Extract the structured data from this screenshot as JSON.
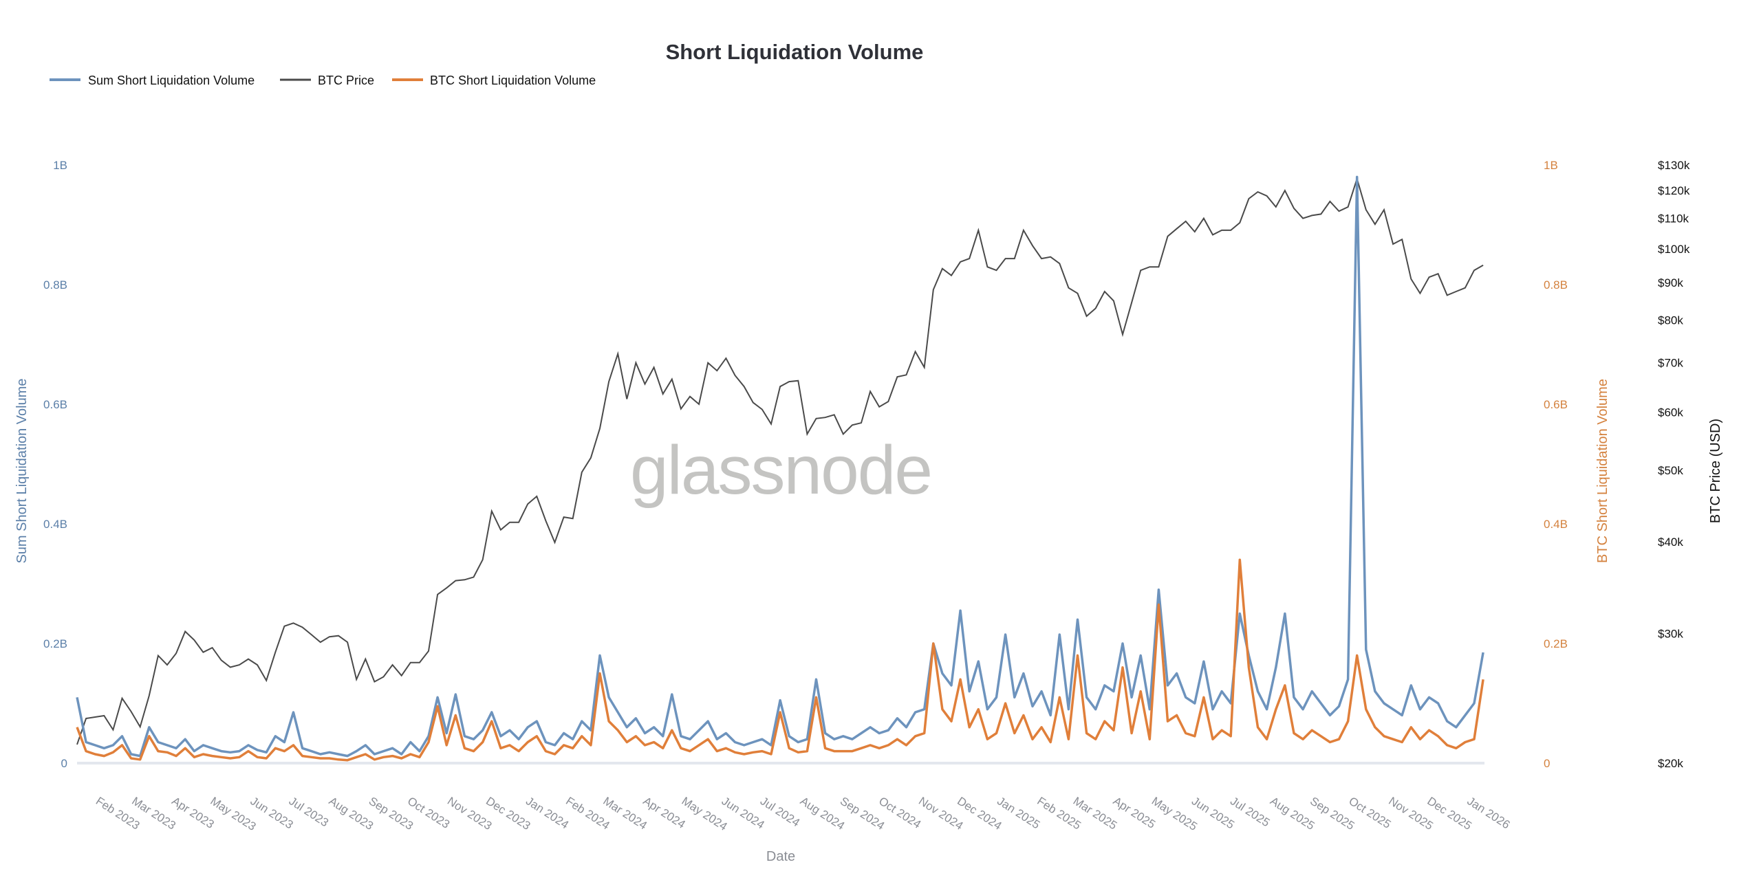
{
  "chart_data": {
    "type": "line",
    "title": "Short Liquidation Volume",
    "xlabel": "Date",
    "legend_position": "top-left",
    "grid": false,
    "watermark": "glassnode",
    "colors": {
      "sum": "#6d93bd",
      "price": "#4a4a4a",
      "btc": "#e07f3a",
      "left_axis": "#5b7fa8",
      "right_axis": "#d4823f"
    },
    "legend": [
      "Sum Short Liquidation Volume",
      "BTC Price",
      "BTC Short Liquidation Volume"
    ],
    "y_left": {
      "label": "Sum Short Liquidation Volume",
      "range": [
        0,
        1000000000
      ],
      "ticks": [
        "0",
        "0.2B",
        "0.4B",
        "0.6B",
        "0.8B",
        "1B"
      ]
    },
    "y_right": {
      "label": "BTC Short Liquidation Volume",
      "range": [
        0,
        1000000000
      ],
      "ticks": [
        "0",
        "0.2B",
        "0.4B",
        "0.6B",
        "0.8B",
        "1B"
      ]
    },
    "y_price": {
      "label": "BTC Price (USD)",
      "scale": "log",
      "range": [
        20000,
        130000
      ],
      "ticks": [
        {
          "v": 20000,
          "t": "$20k"
        },
        {
          "v": 30000,
          "t": "$30k"
        },
        {
          "v": 40000,
          "t": "$40k"
        },
        {
          "v": 50000,
          "t": "$50k"
        },
        {
          "v": 60000,
          "t": "$60k"
        },
        {
          "v": 70000,
          "t": "$70k"
        },
        {
          "v": 80000,
          "t": "$80k"
        },
        {
          "v": 90000,
          "t": "$90k"
        },
        {
          "v": 100000,
          "t": "$100k"
        },
        {
          "v": 110000,
          "t": "$110k"
        },
        {
          "v": 120000,
          "t": "$120k"
        },
        {
          "v": 130000,
          "t": "$130k"
        }
      ]
    },
    "x_range": [
      "2023-01-17",
      "2026-01-14"
    ],
    "x_ticks": [
      {
        "d": "2023-02-01",
        "t": "Feb 2023"
      },
      {
        "d": "2023-03-01",
        "t": "Mar 2023"
      },
      {
        "d": "2023-04-01",
        "t": "Apr 2023"
      },
      {
        "d": "2023-05-01",
        "t": "May 2023"
      },
      {
        "d": "2023-06-01",
        "t": "Jun 2023"
      },
      {
        "d": "2023-07-01",
        "t": "Jul 2023"
      },
      {
        "d": "2023-08-01",
        "t": "Aug 2023"
      },
      {
        "d": "2023-09-01",
        "t": "Sep 2023"
      },
      {
        "d": "2023-10-01",
        "t": "Oct 2023"
      },
      {
        "d": "2023-11-01",
        "t": "Nov 2023"
      },
      {
        "d": "2023-12-01",
        "t": "Dec 2023"
      },
      {
        "d": "2024-01-01",
        "t": "Jan 2024"
      },
      {
        "d": "2024-02-01",
        "t": "Feb 2024"
      },
      {
        "d": "2024-03-01",
        "t": "Mar 2024"
      },
      {
        "d": "2024-04-01",
        "t": "Apr 2024"
      },
      {
        "d": "2024-05-01",
        "t": "May 2024"
      },
      {
        "d": "2024-06-01",
        "t": "Jun 2024"
      },
      {
        "d": "2024-07-01",
        "t": "Jul 2024"
      },
      {
        "d": "2024-08-01",
        "t": "Aug 2024"
      },
      {
        "d": "2024-09-01",
        "t": "Sep 2024"
      },
      {
        "d": "2024-10-01",
        "t": "Oct 2024"
      },
      {
        "d": "2024-11-01",
        "t": "Nov 2024"
      },
      {
        "d": "2024-12-01",
        "t": "Dec 2024"
      },
      {
        "d": "2025-01-01",
        "t": "Jan 2025"
      },
      {
        "d": "2025-02-01",
        "t": "Feb 2025"
      },
      {
        "d": "2025-03-01",
        "t": "Mar 2025"
      },
      {
        "d": "2025-04-01",
        "t": "Apr 2025"
      },
      {
        "d": "2025-05-01",
        "t": "May 2025"
      },
      {
        "d": "2025-06-01",
        "t": "Jun 2025"
      },
      {
        "d": "2025-07-01",
        "t": "Jul 2025"
      },
      {
        "d": "2025-08-01",
        "t": "Aug 2025"
      },
      {
        "d": "2025-09-01",
        "t": "Sep 2025"
      },
      {
        "d": "2025-10-01",
        "t": "Oct 2025"
      },
      {
        "d": "2025-11-01",
        "t": "Nov 2025"
      },
      {
        "d": "2025-12-01",
        "t": "Dec 2025"
      },
      {
        "d": "2026-01-01",
        "t": "Jan 2026"
      }
    ],
    "columns": [
      "date",
      "btc_price_usd",
      "sum_short_liq_volume_musd",
      "btc_short_liq_volume_musd"
    ],
    "rows": [
      [
        "2023-01-17",
        21200,
        110,
        60
      ],
      [
        "2023-01-24",
        23000,
        35,
        20
      ],
      [
        "2023-01-31",
        23100,
        30,
        15
      ],
      [
        "2023-02-07",
        23200,
        25,
        12
      ],
      [
        "2023-02-14",
        22200,
        30,
        18
      ],
      [
        "2023-02-21",
        24500,
        45,
        30
      ],
      [
        "2023-02-28",
        23500,
        15,
        8
      ],
      [
        "2023-03-07",
        22400,
        12,
        6
      ],
      [
        "2023-03-14",
        24700,
        60,
        45
      ],
      [
        "2023-03-21",
        28000,
        35,
        20
      ],
      [
        "2023-03-28",
        27200,
        30,
        18
      ],
      [
        "2023-04-04",
        28200,
        25,
        12
      ],
      [
        "2023-04-11",
        30200,
        40,
        25
      ],
      [
        "2023-04-18",
        29400,
        20,
        10
      ],
      [
        "2023-04-25",
        28300,
        30,
        15
      ],
      [
        "2023-05-02",
        28700,
        25,
        12
      ],
      [
        "2023-05-09",
        27600,
        20,
        10
      ],
      [
        "2023-05-16",
        27000,
        18,
        8
      ],
      [
        "2023-05-23",
        27200,
        20,
        10
      ],
      [
        "2023-05-30",
        27700,
        30,
        20
      ],
      [
        "2023-06-06",
        27200,
        22,
        10
      ],
      [
        "2023-06-13",
        25900,
        18,
        8
      ],
      [
        "2023-06-20",
        28300,
        45,
        25
      ],
      [
        "2023-06-27",
        30700,
        35,
        20
      ],
      [
        "2023-07-04",
        31000,
        85,
        30
      ],
      [
        "2023-07-11",
        30600,
        25,
        12
      ],
      [
        "2023-07-18",
        29900,
        20,
        10
      ],
      [
        "2023-07-25",
        29200,
        15,
        8
      ],
      [
        "2023-08-01",
        29700,
        18,
        8
      ],
      [
        "2023-08-08",
        29800,
        15,
        6
      ],
      [
        "2023-08-15",
        29200,
        12,
        5
      ],
      [
        "2023-08-22",
        26000,
        20,
        10
      ],
      [
        "2023-08-29",
        27700,
        30,
        15
      ],
      [
        "2023-09-05",
        25800,
        15,
        6
      ],
      [
        "2023-09-12",
        26200,
        20,
        10
      ],
      [
        "2023-09-19",
        27200,
        25,
        12
      ],
      [
        "2023-09-26",
        26300,
        15,
        8
      ],
      [
        "2023-10-03",
        27400,
        35,
        15
      ],
      [
        "2023-10-10",
        27400,
        20,
        10
      ],
      [
        "2023-10-17",
        28400,
        45,
        35
      ],
      [
        "2023-10-24",
        33900,
        110,
        95
      ],
      [
        "2023-10-31",
        34600,
        50,
        30
      ],
      [
        "2023-11-07",
        35400,
        115,
        80
      ],
      [
        "2023-11-14",
        35500,
        45,
        25
      ],
      [
        "2023-11-21",
        35800,
        40,
        20
      ],
      [
        "2023-11-28",
        37800,
        55,
        35
      ],
      [
        "2023-12-05",
        44000,
        85,
        70
      ],
      [
        "2023-12-12",
        41500,
        45,
        25
      ],
      [
        "2023-12-19",
        42500,
        55,
        30
      ],
      [
        "2023-12-26",
        42500,
        40,
        20
      ],
      [
        "2024-01-02",
        45000,
        60,
        35
      ],
      [
        "2024-01-09",
        46100,
        70,
        45
      ],
      [
        "2024-01-16",
        42700,
        35,
        20
      ],
      [
        "2024-01-23",
        39900,
        30,
        15
      ],
      [
        "2024-01-30",
        43200,
        50,
        30
      ],
      [
        "2024-02-06",
        43000,
        40,
        25
      ],
      [
        "2024-02-13",
        49700,
        70,
        45
      ],
      [
        "2024-02-20",
        52000,
        55,
        30
      ],
      [
        "2024-02-27",
        57000,
        180,
        150
      ],
      [
        "2024-03-05",
        66000,
        110,
        70
      ],
      [
        "2024-03-12",
        72000,
        85,
        55
      ],
      [
        "2024-03-19",
        62500,
        60,
        35
      ],
      [
        "2024-03-26",
        70000,
        75,
        45
      ],
      [
        "2024-04-02",
        65500,
        50,
        30
      ],
      [
        "2024-04-09",
        69000,
        60,
        35
      ],
      [
        "2024-04-16",
        63500,
        45,
        25
      ],
      [
        "2024-04-23",
        66500,
        115,
        55
      ],
      [
        "2024-04-30",
        60600,
        45,
        25
      ],
      [
        "2024-05-07",
        63000,
        40,
        20
      ],
      [
        "2024-05-14",
        61500,
        55,
        30
      ],
      [
        "2024-05-21",
        70000,
        70,
        40
      ],
      [
        "2024-05-28",
        68300,
        40,
        20
      ],
      [
        "2024-06-04",
        71000,
        50,
        25
      ],
      [
        "2024-06-11",
        67300,
        35,
        18
      ],
      [
        "2024-06-18",
        65000,
        30,
        15
      ],
      [
        "2024-06-25",
        61800,
        35,
        18
      ],
      [
        "2024-07-02",
        60500,
        40,
        20
      ],
      [
        "2024-07-09",
        57800,
        30,
        15
      ],
      [
        "2024-07-16",
        65000,
        105,
        85
      ],
      [
        "2024-07-23",
        66000,
        45,
        25
      ],
      [
        "2024-07-30",
        66200,
        35,
        18
      ],
      [
        "2024-08-06",
        56000,
        40,
        20
      ],
      [
        "2024-08-13",
        58800,
        140,
        110
      ],
      [
        "2024-08-20",
        59000,
        50,
        25
      ],
      [
        "2024-08-27",
        59500,
        40,
        20
      ],
      [
        "2024-09-03",
        56000,
        45,
        20
      ],
      [
        "2024-09-10",
        57600,
        40,
        20
      ],
      [
        "2024-09-17",
        58000,
        50,
        25
      ],
      [
        "2024-09-24",
        64000,
        60,
        30
      ],
      [
        "2024-10-01",
        61000,
        50,
        25
      ],
      [
        "2024-10-08",
        62000,
        55,
        30
      ],
      [
        "2024-10-15",
        67000,
        75,
        40
      ],
      [
        "2024-10-22",
        67400,
        60,
        30
      ],
      [
        "2024-10-29",
        72500,
        85,
        45
      ],
      [
        "2024-11-05",
        69000,
        90,
        50
      ],
      [
        "2024-11-12",
        88000,
        200,
        200
      ],
      [
        "2024-11-19",
        94000,
        150,
        90
      ],
      [
        "2024-11-26",
        92000,
        130,
        70
      ],
      [
        "2024-12-03",
        96000,
        255,
        140
      ],
      [
        "2024-12-10",
        97000,
        120,
        60
      ],
      [
        "2024-12-17",
        106000,
        170,
        90
      ],
      [
        "2024-12-24",
        94500,
        90,
        40
      ],
      [
        "2024-12-31",
        93500,
        110,
        50
      ],
      [
        "2025-01-07",
        97000,
        215,
        100
      ],
      [
        "2025-01-14",
        97000,
        110,
        50
      ],
      [
        "2025-01-21",
        106000,
        150,
        80
      ],
      [
        "2025-01-28",
        101000,
        95,
        40
      ],
      [
        "2025-02-04",
        97000,
        120,
        60
      ],
      [
        "2025-02-11",
        97500,
        80,
        35
      ],
      [
        "2025-02-18",
        95500,
        215,
        110
      ],
      [
        "2025-02-25",
        88500,
        90,
        40
      ],
      [
        "2025-03-04",
        87000,
        240,
        180
      ],
      [
        "2025-03-11",
        81000,
        110,
        50
      ],
      [
        "2025-03-18",
        83000,
        90,
        40
      ],
      [
        "2025-03-25",
        87500,
        130,
        70
      ],
      [
        "2025-04-01",
        85000,
        120,
        55
      ],
      [
        "2025-04-08",
        76500,
        200,
        160
      ],
      [
        "2025-04-15",
        84500,
        110,
        50
      ],
      [
        "2025-04-22",
        93500,
        180,
        120
      ],
      [
        "2025-04-29",
        94500,
        90,
        40
      ],
      [
        "2025-05-06",
        94500,
        290,
        265
      ],
      [
        "2025-05-13",
        104000,
        130,
        70
      ],
      [
        "2025-05-20",
        106500,
        150,
        80
      ],
      [
        "2025-05-27",
        109000,
        110,
        50
      ],
      [
        "2025-06-03",
        105500,
        100,
        45
      ],
      [
        "2025-06-10",
        110000,
        170,
        110
      ],
      [
        "2025-06-17",
        104500,
        90,
        40
      ],
      [
        "2025-06-24",
        106000,
        120,
        55
      ],
      [
        "2025-07-01",
        106000,
        100,
        45
      ],
      [
        "2025-07-08",
        108500,
        250,
        340
      ],
      [
        "2025-07-15",
        117000,
        180,
        160
      ],
      [
        "2025-07-22",
        119500,
        120,
        60
      ],
      [
        "2025-07-29",
        118000,
        90,
        40
      ],
      [
        "2025-08-05",
        114000,
        160,
        90
      ],
      [
        "2025-08-12",
        120000,
        250,
        130
      ],
      [
        "2025-08-19",
        113500,
        110,
        50
      ],
      [
        "2025-08-26",
        110000,
        90,
        40
      ],
      [
        "2025-09-02",
        111000,
        120,
        55
      ],
      [
        "2025-09-09",
        111500,
        100,
        45
      ],
      [
        "2025-09-16",
        116000,
        80,
        35
      ],
      [
        "2025-09-23",
        112500,
        95,
        40
      ],
      [
        "2025-09-30",
        114000,
        140,
        70
      ],
      [
        "2025-10-07",
        124500,
        980,
        180
      ],
      [
        "2025-10-14",
        113000,
        190,
        90
      ],
      [
        "2025-10-21",
        108000,
        120,
        60
      ],
      [
        "2025-10-28",
        113000,
        100,
        45
      ],
      [
        "2025-11-04",
        101500,
        90,
        40
      ],
      [
        "2025-11-11",
        103000,
        80,
        35
      ],
      [
        "2025-11-18",
        91000,
        130,
        60
      ],
      [
        "2025-11-25",
        87000,
        90,
        40
      ],
      [
        "2025-12-02",
        91500,
        110,
        55
      ],
      [
        "2025-12-09",
        92500,
        100,
        45
      ],
      [
        "2025-12-16",
        86500,
        70,
        30
      ],
      [
        "2025-12-23",
        87500,
        60,
        25
      ],
      [
        "2025-12-30",
        88500,
        80,
        35
      ],
      [
        "2026-01-06",
        93500,
        100,
        40
      ],
      [
        "2026-01-13",
        95000,
        185,
        140
      ]
    ]
  }
}
